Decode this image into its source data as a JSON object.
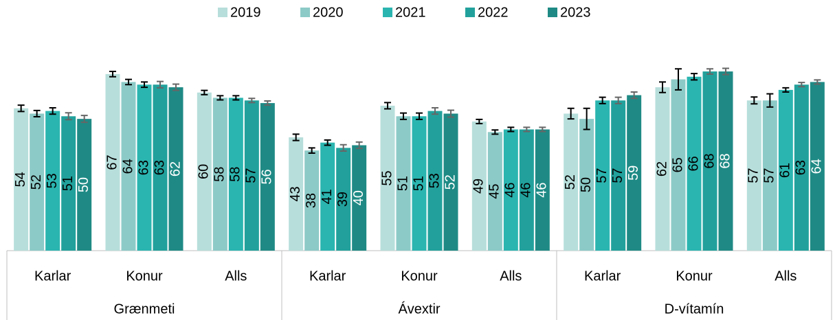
{
  "chart_data": {
    "type": "bar",
    "groups": [
      {
        "name": "Grænmeti",
        "categories": [
          "Karlar",
          "Konur",
          "Alls"
        ]
      },
      {
        "name": "Ávextir",
        "categories": [
          "Karlar",
          "Konur",
          "Alls"
        ]
      },
      {
        "name": "D-vítamín",
        "categories": [
          "Karlar",
          "Konur",
          "Alls"
        ]
      }
    ],
    "series": [
      {
        "name": "2019",
        "color": "#b7dedb",
        "label_color": "#000000",
        "error_color": "#000000",
        "values": [
          54,
          67,
          60,
          43,
          55,
          49,
          52,
          62,
          57
        ],
        "errors": [
          1.2,
          1,
          0.8,
          1.2,
          1.2,
          0.8,
          2,
          2,
          1.3
        ]
      },
      {
        "name": "2020",
        "color": "#8ccac7",
        "label_color": "#000000",
        "error_color": "#000000",
        "values": [
          52,
          64,
          58,
          38,
          51,
          45,
          50,
          65,
          57
        ],
        "errors": [
          1.2,
          1,
          0.8,
          1,
          1.2,
          0.8,
          4,
          4,
          2.5
        ]
      },
      {
        "name": "2021",
        "color": "#2bb5b0",
        "label_color": "#000000",
        "error_color": "#000000",
        "values": [
          53,
          63,
          58,
          41,
          51,
          46,
          57,
          66,
          61
        ],
        "errors": [
          1.2,
          1,
          0.8,
          1,
          1.2,
          0.8,
          1.2,
          1.2,
          0.8
        ]
      },
      {
        "name": "2022",
        "color": "#22a19c",
        "label_color": "#000000",
        "error_color": "#666666",
        "values": [
          51,
          63,
          57,
          39,
          53,
          46,
          57,
          68,
          63
        ],
        "errors": [
          1.3,
          1.2,
          0.8,
          1.2,
          1.2,
          0.8,
          1.2,
          1,
          0.8
        ]
      },
      {
        "name": "2023",
        "color": "#1f8a85",
        "label_color": "#ffffff",
        "error_color": "#666666",
        "values": [
          50,
          62,
          56,
          40,
          52,
          46,
          59,
          68,
          64
        ],
        "errors": [
          1.3,
          1.2,
          0.8,
          1.2,
          1.3,
          0.8,
          1.2,
          1.2,
          0.8
        ]
      }
    ],
    "ylim": [
      0,
      80
    ]
  }
}
